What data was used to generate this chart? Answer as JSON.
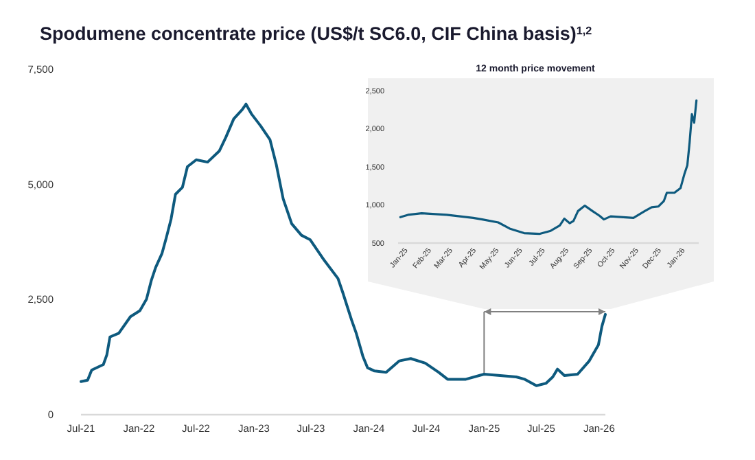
{
  "chart_data": [
    {
      "type": "line",
      "title": "Spodumene concentrate price (US$/t SC6.0, CIF China basis)$^{1,2}$",
      "grid": false,
      "marker": "none",
      "line_style": "solid",
      "x": [
        "2021-07-01",
        "2021-07-22",
        "2021-08-04",
        "2021-09-10",
        "2021-09-21",
        "2021-10-01",
        "2021-10-29",
        "2021-12-05",
        "2022-01-04",
        "2022-01-25",
        "2022-02-09",
        "2022-02-23",
        "2022-03-15",
        "2022-03-29",
        "2022-04-13",
        "2022-04-27",
        "2022-05-19",
        "2022-06-04",
        "2022-07-02",
        "2022-08-07",
        "2022-09-13",
        "2022-10-04",
        "2022-10-29",
        "2022-11-25",
        "2022-12-07",
        "2022-12-25",
        "2023-01-22",
        "2023-02-21",
        "2023-03-13",
        "2023-04-04",
        "2023-05-01",
        "2023-06-01",
        "2023-06-29",
        "2023-08-13",
        "2023-09-25",
        "2023-10-10",
        "2023-11-07",
        "2023-11-22",
        "2023-12-13",
        "2023-12-28",
        "2024-01-19",
        "2024-02-25",
        "2024-04-07",
        "2024-05-13",
        "2024-06-28",
        "2024-08-10",
        "2024-09-07",
        "2024-11-04",
        "2025-01-01",
        "2025-04-13",
        "2025-05-10",
        "2025-06-16",
        "2025-07-16",
        "2025-08-07",
        "2025-08-22",
        "2025-09-13",
        "2025-10-25",
        "2025-12-01",
        "2025-12-30",
        "2026-01-10",
        "2026-01-21"
      ],
      "series": [
        {
          "color": "#0e5a7e",
          "values": [
            720,
            750,
            970,
            1090,
            1300,
            1690,
            1770,
            2130,
            2260,
            2510,
            2910,
            3200,
            3500,
            3850,
            4250,
            4790,
            4940,
            5390,
            5540,
            5490,
            5730,
            6030,
            6430,
            6630,
            6750,
            6530,
            6280,
            5980,
            5440,
            4690,
            4150,
            3900,
            3800,
            3350,
            2960,
            2660,
            2060,
            1770,
            1270,
            1020,
            950,
            920,
            1170,
            1220,
            1120,
            920,
            770,
            770,
            880,
            820,
            770,
            630,
            680,
            820,
            990,
            850,
            880,
            1170,
            1520,
            1920,
            2180
          ]
        }
      ],
      "xlim": [
        "2021-07-01",
        "2026-01-21"
      ],
      "xticks": [
        {
          "value": "2021-07-01",
          "label": "Jul-21"
        },
        {
          "value": "2022-01-01",
          "label": "Jan-22"
        },
        {
          "value": "2022-07-01",
          "label": "Jul-22"
        },
        {
          "value": "2023-01-01",
          "label": "Jan-23"
        },
        {
          "value": "2023-07-01",
          "label": "Jul-23"
        },
        {
          "value": "2024-01-01",
          "label": "Jan-24"
        },
        {
          "value": "2024-07-01",
          "label": "Jul-24"
        },
        {
          "value": "2025-01-01",
          "label": "Jan-25"
        },
        {
          "value": "2025-07-01",
          "label": "Jul-25"
        },
        {
          "value": "2026-01-01",
          "label": "Jan-26"
        }
      ],
      "ylim": [
        0,
        7500
      ],
      "yticks": [
        0,
        {
          "value": 2500,
          "label": "2,500"
        },
        {
          "value": 5000,
          "label": "5,000"
        },
        {
          "value": 7500,
          "label": "7,500"
        }
      ]
    },
    {
      "type": "line",
      "title": "12 month price movement",
      "grid": false,
      "marker": "none",
      "line_style": "solid",
      "x": [
        "2024-12-28",
        "2025-01-07",
        "2025-01-25",
        "2025-02-27",
        "2025-04-03",
        "2025-04-15",
        "2025-05-06",
        "2025-05-21",
        "2025-06-09",
        "2025-06-29",
        "2025-07-14",
        "2025-07-26",
        "2025-08-01",
        "2025-08-08",
        "2025-08-13",
        "2025-08-19",
        "2025-08-28",
        "2025-09-07",
        "2025-09-16",
        "2025-09-22",
        "2025-10-01",
        "2025-10-31",
        "2025-11-15",
        "2025-11-24",
        "2025-12-03",
        "2025-12-10",
        "2025-12-14",
        "2025-12-24",
        "2026-01-01",
        "2026-01-06",
        "2026-01-10",
        "2026-01-13",
        "2026-01-16",
        "2026-01-19",
        "2026-01-22"
      ],
      "series": [
        {
          "color": "#0e5a7e",
          "values": [
            840,
            870,
            890,
            870,
            830,
            810,
            770,
            690,
            630,
            620,
            660,
            730,
            820,
            760,
            790,
            920,
            990,
            920,
            860,
            810,
            850,
            830,
            920,
            970,
            980,
            1050,
            1160,
            1160,
            1220,
            1400,
            1520,
            1820,
            2190,
            2080,
            2370
          ]
        }
      ],
      "xlim": [
        "2024-12-25",
        "2026-01-25"
      ],
      "xticks": [
        {
          "value": "2025-01-01",
          "label": "Jan-25"
        },
        {
          "value": "2025-02-01",
          "label": "Feb-25"
        },
        {
          "value": "2025-03-01",
          "label": "Mar-25"
        },
        {
          "value": "2025-04-01",
          "label": "Apr-25"
        },
        {
          "value": "2025-05-01",
          "label": "May-25"
        },
        {
          "value": "2025-06-01",
          "label": "Jun-25"
        },
        {
          "value": "2025-07-01",
          "label": "Jul-25"
        },
        {
          "value": "2025-08-01",
          "label": "Aug-25"
        },
        {
          "value": "2025-09-01",
          "label": "Sep-25"
        },
        {
          "value": "2025-10-01",
          "label": "Oct-25"
        },
        {
          "value": "2025-11-01",
          "label": "Nov-25"
        },
        {
          "value": "2025-12-01",
          "label": "Dec-25"
        },
        {
          "value": "2026-01-01",
          "label": "Jan-26"
        }
      ],
      "ylim": [
        500,
        2500
      ],
      "yticks": [
        500,
        {
          "value": 1000,
          "label": "1,000"
        },
        {
          "value": 1500,
          "label": "1,500"
        },
        {
          "value": 2000,
          "label": "2,000"
        },
        {
          "value": 2500,
          "label": "2,500"
        }
      ]
    }
  ]
}
